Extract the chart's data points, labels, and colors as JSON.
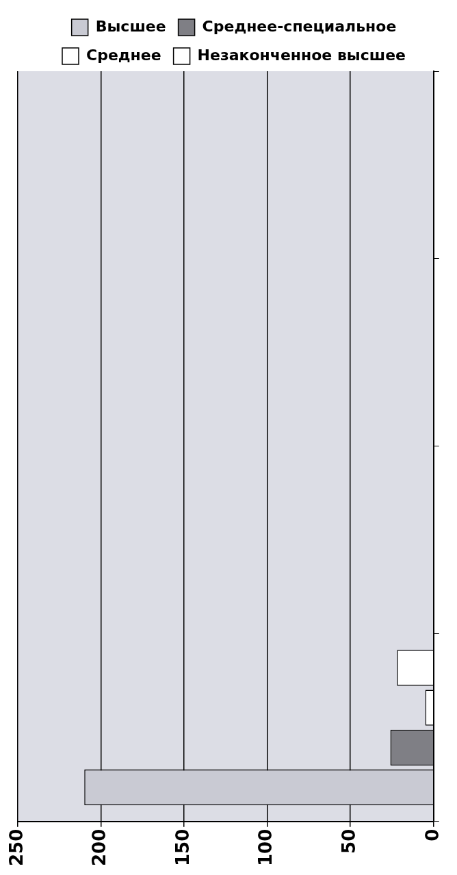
{
  "chart_data": {
    "type": "bar",
    "orientation": "horizontal",
    "categories": [
      null,
      null,
      null,
      null
    ],
    "series": [
      {
        "name": "Высшее",
        "color": "#c9cad3",
        "values": [
          null,
          null,
          null,
          210
        ]
      },
      {
        "name": "Среднее-специальное",
        "color": "#7f7f85",
        "values": [
          null,
          null,
          null,
          26
        ]
      },
      {
        "name": "Среднее",
        "color": "#ffffff",
        "values": [
          null,
          null,
          null,
          5
        ]
      },
      {
        "name": "Незаконченное высшее",
        "color": "#ffffff",
        "values": [
          null,
          null,
          null,
          22
        ]
      }
    ],
    "xlim": [
      250,
      0
    ],
    "xticks": [
      250,
      200,
      150,
      100,
      50,
      0
    ],
    "grid": "x",
    "legend": "top"
  }
}
